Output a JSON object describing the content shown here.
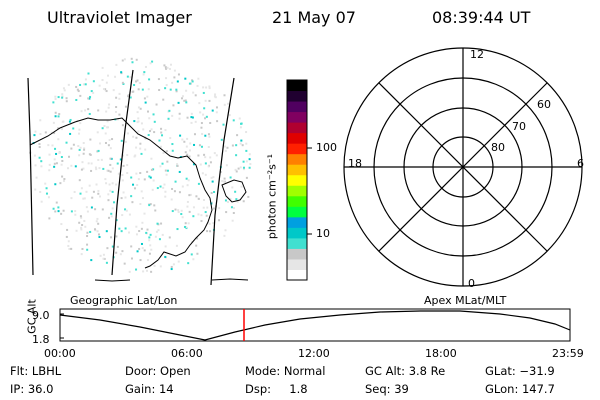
{
  "header": {
    "instrument": "Ultraviolet Imager",
    "date": "21 May 07",
    "time": "08:39:44 UT"
  },
  "projection_labels": {
    "geographic": "Geographic Lat/Lon",
    "apex": "Apex MLat/MLT"
  },
  "colorbar": {
    "unit_label": "photon cm⁻²s⁻¹",
    "ticks": [
      "100",
      "10"
    ],
    "colors": [
      "#ffffff",
      "#e6e6e6",
      "#c8c8c8",
      "#40e0d0",
      "#00c8c8",
      "#00a0e0",
      "#00ff40",
      "#40ff00",
      "#a0ff00",
      "#ffff00",
      "#ffc000",
      "#ff8000",
      "#ff2000",
      "#e00000",
      "#b00030",
      "#800060",
      "#500060",
      "#200030",
      "#000000"
    ]
  },
  "polar_plot": {
    "mlt_labels": [
      "12",
      "18",
      "6",
      "0"
    ],
    "mlat_labels": [
      "60",
      "70",
      "80"
    ]
  },
  "altitude_panel": {
    "ylabel": "GC Alt",
    "y_ticks": [
      "9.0",
      "1.8"
    ],
    "x_ticks": [
      "00:00",
      "06:00",
      "12:00",
      "18:00",
      "23:59"
    ],
    "current_time_color": "#ff0000"
  },
  "info": {
    "filter": "Flt: LBHL",
    "door": "Door: Open",
    "mode": "Mode: Normal",
    "gc_alt": "GC Alt: 3.8 Re",
    "glat": "GLat: −31.9",
    "ip": "IP: 36.0",
    "gain": "Gain: 14",
    "dsp": "Dsp:     1.8",
    "seq": "Seq: 39",
    "glon": "GLon: 147.7"
  }
}
